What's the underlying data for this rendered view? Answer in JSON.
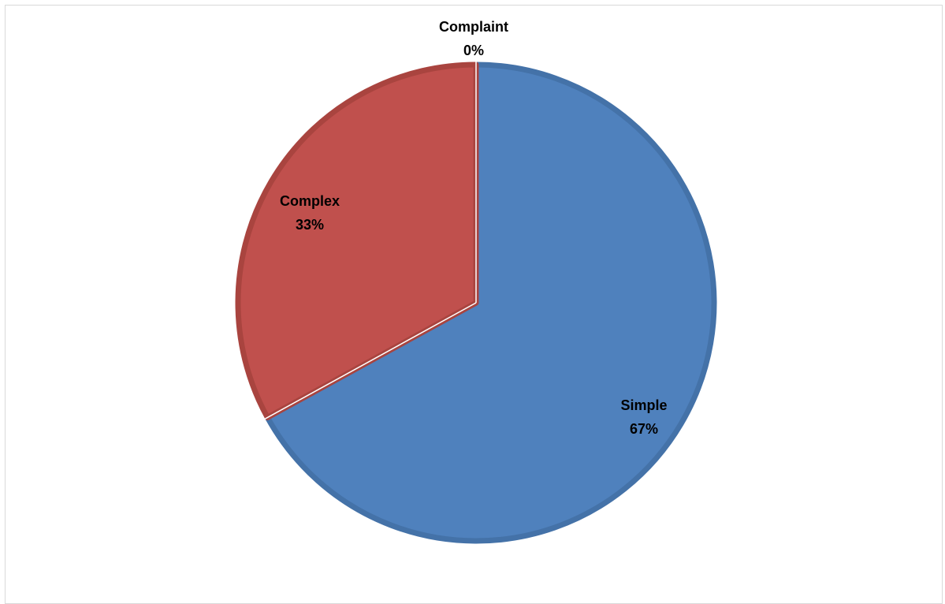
{
  "chart_data": {
    "type": "pie",
    "title": "",
    "slices": [
      {
        "label": "Simple",
        "value": 67,
        "percent_label": "67%",
        "color": "#4F81BD",
        "edge": "#4472A8"
      },
      {
        "label": "Complex",
        "value": 33,
        "percent_label": "33%",
        "color": "#C0504D",
        "edge": "#A9443F"
      },
      {
        "label": "Complaint",
        "value": 0,
        "percent_label": "0%",
        "color": "#9BBB59",
        "edge": "#8AA84E"
      }
    ],
    "start_angle_deg": 0,
    "direction": "clockwise",
    "legend": "none",
    "data_labels": "category-and-percent"
  }
}
